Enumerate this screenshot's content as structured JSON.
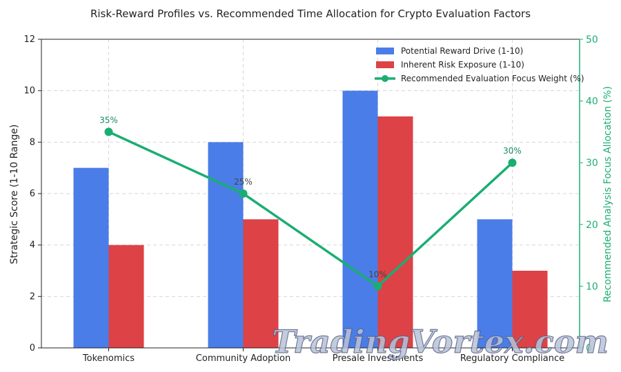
{
  "chart_data": {
    "type": "bar",
    "title": "Risk-Reward Profiles vs. Recommended Time Allocation for Crypto Evaluation Factors",
    "categories": [
      "Tokenomics",
      "Community Adoption",
      "Presale Investments",
      "Regulatory Compliance"
    ],
    "ylabel": "Strategic Score (1-10 Range)",
    "ylim": [
      0,
      12
    ],
    "yticks": [
      "0",
      "2",
      "4",
      "6",
      "8",
      "10",
      "12"
    ],
    "y2label": "Recommended Analysis Focus Allocation (%)",
    "y2lim": [
      0,
      50
    ],
    "y2ticks": [
      "0",
      "10",
      "20",
      "30",
      "40",
      "50"
    ],
    "grid": true,
    "legend_position": "top-right",
    "series": [
      {
        "name": "Potential Reward Drive (1-10)",
        "type": "bar",
        "axis": "left",
        "color": "#4a7de8",
        "values": [
          7,
          8,
          10,
          5
        ]
      },
      {
        "name": "Inherent Risk Exposure (1-10)",
        "type": "bar",
        "axis": "left",
        "color": "#dc4246",
        "values": [
          4,
          5,
          9,
          3
        ]
      },
      {
        "name": "Recommended Evaluation Focus Weight (%)",
        "type": "line",
        "axis": "right",
        "color": "#1aae72",
        "values": [
          35,
          25,
          10,
          30
        ],
        "labels": [
          "35%",
          "25%",
          "10%",
          "30%"
        ]
      }
    ],
    "y2_axis_color": "#1aae72"
  },
  "watermark": {
    "text": "TradingVortex.com"
  }
}
